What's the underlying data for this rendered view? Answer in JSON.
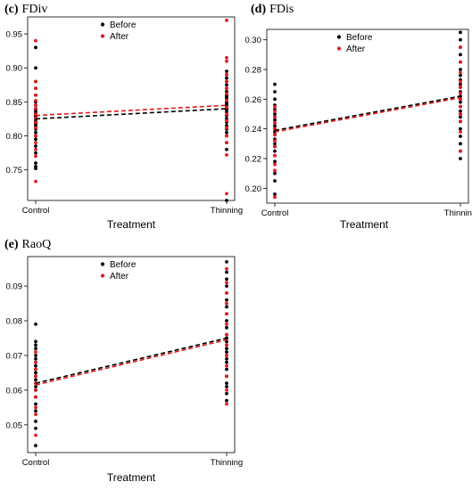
{
  "chart_data": [
    {
      "type": "scatter",
      "letter": "(c)",
      "title": "FDiv",
      "xlabel": "Treatment",
      "ylabel": "",
      "categories": [
        "Control",
        "Thinning"
      ],
      "yticks": [
        "0.75",
        "0.80",
        "0.85",
        "0.90",
        "0.95"
      ],
      "ylim": [
        0.705,
        0.975
      ],
      "legend": [
        "Before",
        "After"
      ],
      "legend_position": "top-center",
      "series": [
        {
          "name": "Before",
          "color": "#000000",
          "control": [
            0.752,
            0.755,
            0.76,
            0.775,
            0.785,
            0.795,
            0.8,
            0.805,
            0.81,
            0.815,
            0.818,
            0.82,
            0.822,
            0.825,
            0.828,
            0.83,
            0.832,
            0.835,
            0.838,
            0.84,
            0.845,
            0.85,
            0.86,
            0.87,
            0.88,
            0.9,
            0.93
          ],
          "thinning": [
            0.705,
            0.78,
            0.79,
            0.8,
            0.805,
            0.81,
            0.815,
            0.82,
            0.825,
            0.83,
            0.835,
            0.838,
            0.84,
            0.842,
            0.845,
            0.848,
            0.85,
            0.855,
            0.858,
            0.86,
            0.865,
            0.87,
            0.875,
            0.88,
            0.885,
            0.89,
            0.895
          ],
          "trend": [
            0.825,
            0.84
          ]
        },
        {
          "name": "After",
          "color": "#e31a1c",
          "control": [
            0.733,
            0.77,
            0.78,
            0.79,
            0.8,
            0.812,
            0.82,
            0.826,
            0.832,
            0.84,
            0.845,
            0.852,
            0.86,
            0.87,
            0.88,
            0.94
          ],
          "thinning": [
            0.715,
            0.772,
            0.79,
            0.8,
            0.812,
            0.822,
            0.832,
            0.842,
            0.852,
            0.862,
            0.87,
            0.88,
            0.89,
            0.91,
            0.915,
            0.97
          ],
          "trend": [
            0.83,
            0.845
          ]
        }
      ]
    },
    {
      "type": "scatter",
      "letter": "(d)",
      "title": "FDis",
      "xlabel": "Treatment",
      "ylabel": "",
      "categories": [
        "Control",
        "Thinning"
      ],
      "yticks": [
        "0.20",
        "0.22",
        "0.24",
        "0.26",
        "0.28",
        "0.30"
      ],
      "ylim": [
        0.19,
        0.307
      ],
      "legend": [
        "Before",
        "After"
      ],
      "legend_position": "top-center",
      "series": [
        {
          "name": "Before",
          "color": "#000000",
          "control": [
            0.196,
            0.205,
            0.21,
            0.218,
            0.222,
            0.225,
            0.228,
            0.23,
            0.233,
            0.236,
            0.238,
            0.24,
            0.242,
            0.244,
            0.246,
            0.248,
            0.25,
            0.253,
            0.256,
            0.26,
            0.265,
            0.27
          ],
          "thinning": [
            0.22,
            0.225,
            0.23,
            0.235,
            0.24,
            0.245,
            0.248,
            0.25,
            0.252,
            0.255,
            0.258,
            0.26,
            0.262,
            0.265,
            0.268,
            0.27,
            0.273,
            0.276,
            0.28,
            0.285,
            0.29,
            0.295,
            0.3,
            0.305
          ],
          "trend": [
            0.239,
            0.262
          ]
        },
        {
          "name": "After",
          "color": "#e31a1c",
          "control": [
            0.194,
            0.212,
            0.216,
            0.222,
            0.228,
            0.232,
            0.236,
            0.24,
            0.244,
            0.248,
            0.252,
            0.255
          ],
          "thinning": [
            0.225,
            0.238,
            0.245,
            0.25,
            0.255,
            0.26,
            0.264,
            0.268,
            0.272,
            0.278,
            0.285,
            0.295
          ],
          "trend": [
            0.238,
            0.261
          ]
        }
      ]
    },
    {
      "type": "scatter",
      "letter": "(e)",
      "title": "RaoQ",
      "xlabel": "Treatment",
      "ylabel": "",
      "categories": [
        "Control",
        "Thinning"
      ],
      "yticks": [
        "0.05",
        "0.06",
        "0.07",
        "0.08",
        "0.09"
      ],
      "ylim": [
        0.042,
        0.0985
      ],
      "legend": [
        "Before",
        "After"
      ],
      "legend_position": "top-center",
      "series": [
        {
          "name": "Before",
          "color": "#000000",
          "control": [
            0.044,
            0.049,
            0.051,
            0.054,
            0.056,
            0.058,
            0.06,
            0.061,
            0.062,
            0.063,
            0.064,
            0.065,
            0.066,
            0.067,
            0.068,
            0.069,
            0.07,
            0.072,
            0.073,
            0.074,
            0.079
          ],
          "thinning": [
            0.057,
            0.059,
            0.061,
            0.062,
            0.064,
            0.066,
            0.068,
            0.069,
            0.07,
            0.071,
            0.072,
            0.073,
            0.074,
            0.075,
            0.076,
            0.078,
            0.08,
            0.082,
            0.084,
            0.086,
            0.088,
            0.09,
            0.092,
            0.094,
            0.097
          ],
          "trend": [
            0.062,
            0.075
          ]
        },
        {
          "name": "After",
          "color": "#e31a1c",
          "control": [
            0.047,
            0.053,
            0.055,
            0.058,
            0.06,
            0.062,
            0.064,
            0.066,
            0.068,
            0.071
          ],
          "thinning": [
            0.056,
            0.06,
            0.064,
            0.067,
            0.07,
            0.073,
            0.076,
            0.079,
            0.082,
            0.085,
            0.088,
            0.091,
            0.095
          ],
          "trend": [
            0.0615,
            0.0745
          ]
        }
      ]
    }
  ]
}
